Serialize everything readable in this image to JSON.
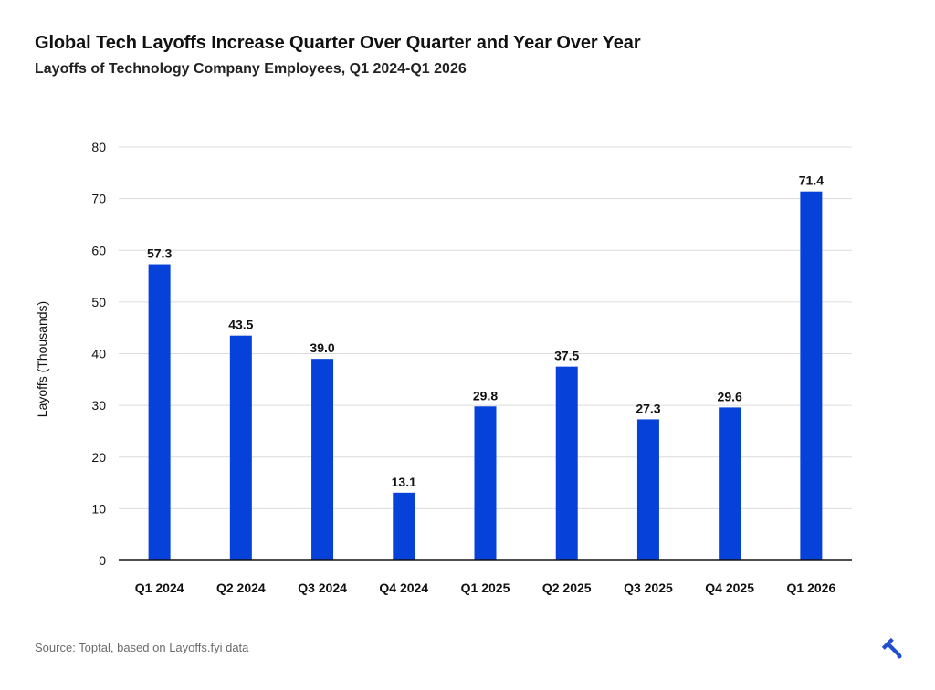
{
  "chart_data": {
    "type": "bar",
    "title": "Global Tech Layoffs Increase Quarter Over Quarter and Year Over Year",
    "subtitle": "Layoffs of Technology Company Employees, Q1 2024-Q1 2026",
    "ylabel": "Layoffs (Thousands)",
    "xlabel": "",
    "ylim": [
      0,
      80
    ],
    "yticks": [
      "0",
      "10",
      "20",
      "30",
      "40",
      "50",
      "60",
      "70",
      "80"
    ],
    "categories": [
      "Q1 2024",
      "Q2 2024",
      "Q3 2024",
      "Q4 2024",
      "Q1 2025",
      "Q2 2025",
      "Q3 2025",
      "Q4 2025",
      "Q1 2026"
    ],
    "values": [
      57.3,
      43.5,
      39.0,
      13.1,
      29.8,
      37.5,
      27.3,
      29.6,
      71.4
    ],
    "value_labels": [
      "57.3",
      "43.5",
      "39.0",
      "13.1",
      "29.8",
      "37.5",
      "27.3",
      "29.6",
      "71.4"
    ],
    "bar_color": "#0641d9",
    "grid": true,
    "legend": "none"
  },
  "source": "Source: Toptal, based on Layoffs.fyi data",
  "brand": {
    "icon": "toptal-logo-icon",
    "color": "#204ecf"
  }
}
